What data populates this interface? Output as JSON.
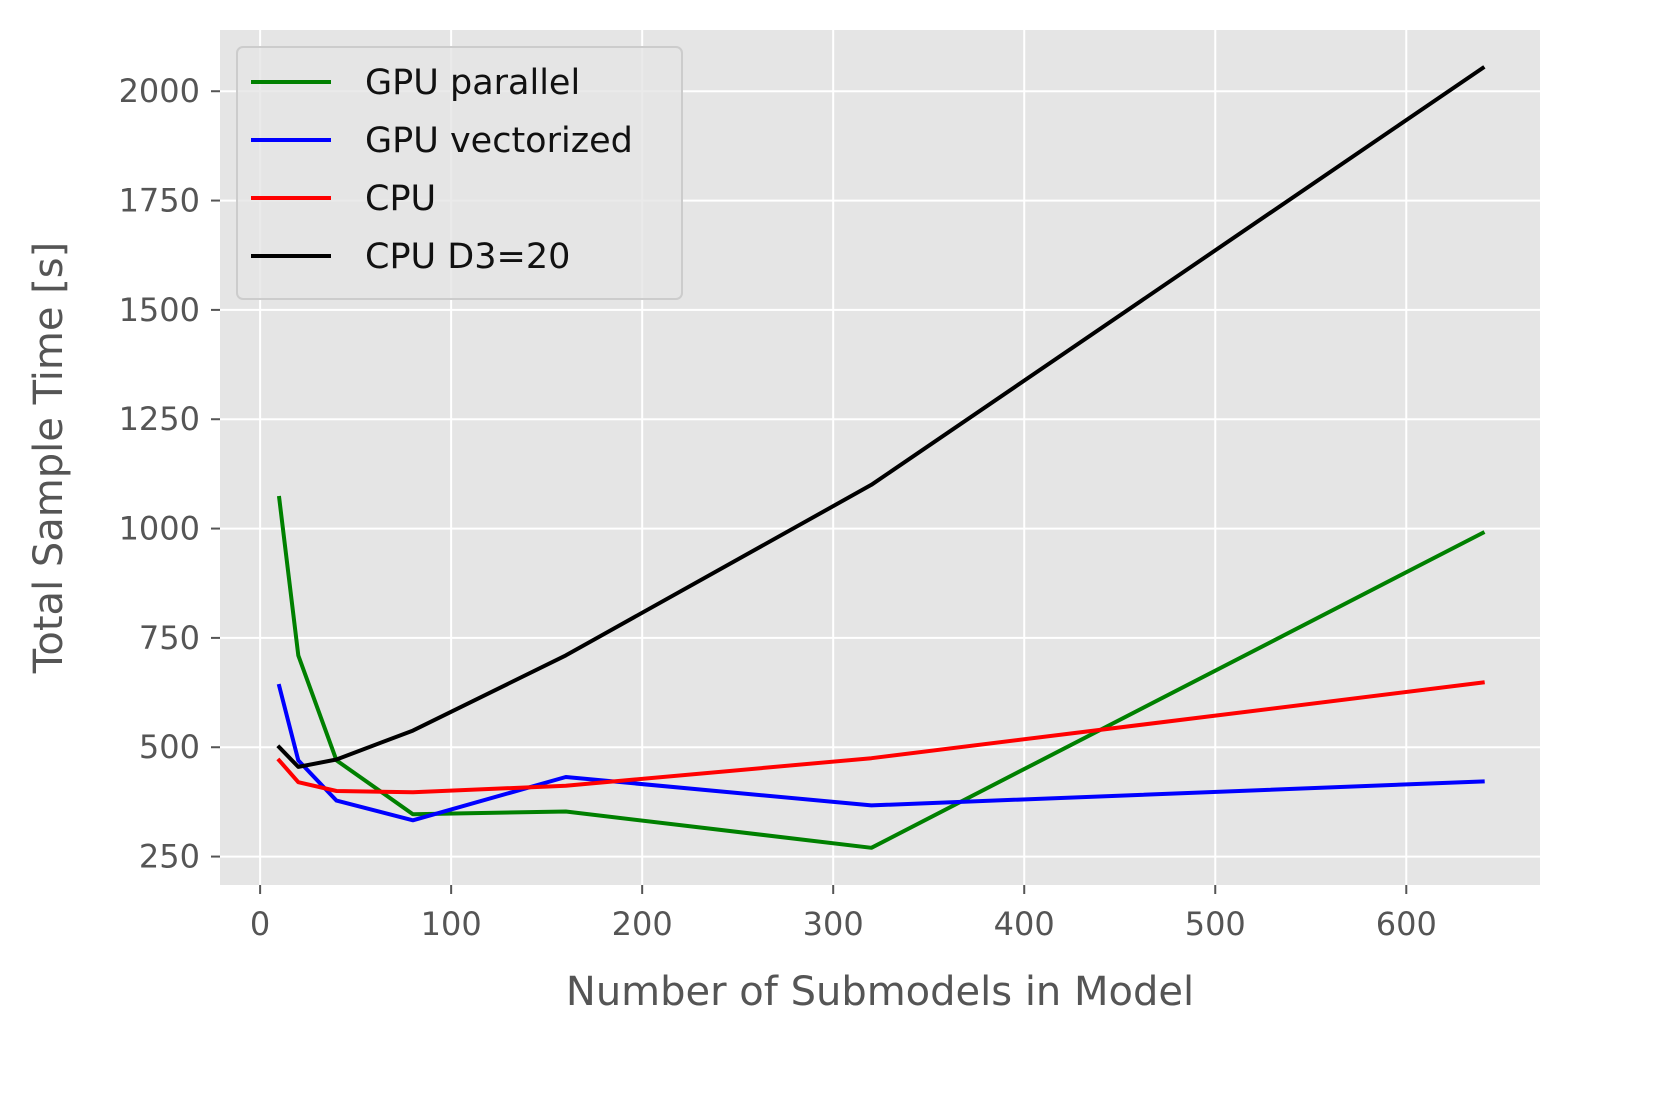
{
  "chart_data": {
    "type": "line",
    "title": "",
    "xlabel": "Number of Submodels in Model",
    "ylabel": "Total Sample Time [s]",
    "xlim": [
      -21,
      670
    ],
    "ylim": [
      185,
      2140
    ],
    "x_ticks": [
      0,
      100,
      200,
      300,
      400,
      500,
      600
    ],
    "y_ticks": [
      250,
      500,
      750,
      1000,
      1250,
      1500,
      1750,
      2000
    ],
    "x_tick_labels": [
      "0",
      "100",
      "200",
      "300",
      "400",
      "500",
      "600"
    ],
    "y_tick_labels": [
      "250",
      "500",
      "750",
      "1000",
      "1250",
      "1500",
      "1750",
      "2000"
    ],
    "grid": true,
    "style": "ggplot",
    "legend_position": "top-left",
    "x": [
      10,
      20,
      40,
      80,
      160,
      320,
      640
    ],
    "series": [
      {
        "name": "GPU parallel",
        "color": "#008000",
        "values": [
          1070,
          710,
          470,
          347,
          353,
          270,
          990
        ]
      },
      {
        "name": "GPU vectorized",
        "color": "#0000ff",
        "values": [
          640,
          470,
          378,
          333,
          432,
          367,
          422
        ]
      },
      {
        "name": "CPU",
        "color": "#ff0000",
        "values": [
          470,
          420,
          400,
          397,
          412,
          475,
          648
        ]
      },
      {
        "name": "CPU D3=20",
        "color": "#000000",
        "values": [
          500,
          455,
          472,
          538,
          710,
          1100,
          2053
        ]
      }
    ]
  }
}
